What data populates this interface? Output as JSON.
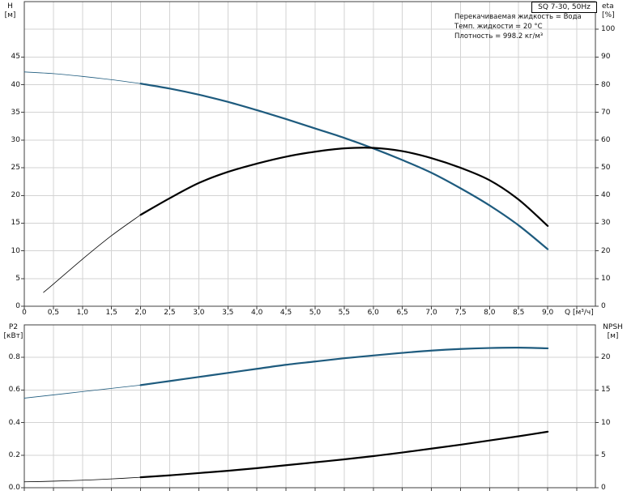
{
  "colors": {
    "primary": "#1e5b7e",
    "secondary": "#000000",
    "grid": "#d3d3d3",
    "axis": "#3f3f3f",
    "text": "#111111"
  },
  "chart_data": [
    {
      "id": "head-flow-chart",
      "type": "line",
      "title": "SQ 7-30, 50Hz",
      "annotations": [
        "Перекачиваемая жидкость = Вода",
        "Темп. жидкости = 20 °C",
        "Плотность = 998.2 кг/м³"
      ],
      "x_axis": {
        "label": "Q [м³/ч]",
        "lim": [
          0,
          9.82
        ],
        "grid_step": 0.5,
        "grid_max": 9.5,
        "tick_values": [
          0,
          0.5,
          1,
          1.5,
          2,
          2.5,
          3,
          3.5,
          4,
          4.5,
          5,
          5.5,
          6,
          6.5,
          7,
          7.5,
          8,
          8.5,
          9
        ],
        "tick_labels": [
          "0",
          "0,5",
          "1,0",
          "1,5",
          "2,0",
          "2,5",
          "3,0",
          "3,5",
          "4,0",
          "4,5",
          "5,0",
          "5,5",
          "6,0",
          "6,5",
          "7,0",
          "7,5",
          "8,0",
          "8,5",
          "9,0"
        ]
      },
      "left_axis": {
        "name": "H",
        "unit": "[м]",
        "lim": [
          0,
          55
        ],
        "tick_values": [
          0,
          5,
          10,
          15,
          20,
          25,
          30,
          35,
          40,
          45
        ],
        "tick_labels": [
          "0",
          "5",
          "10",
          "15",
          "20",
          "25",
          "30",
          "35",
          "40",
          "45"
        ],
        "grid_values": [
          5,
          10,
          15,
          20,
          25,
          30,
          35,
          40,
          45,
          50
        ]
      },
      "right_axis": {
        "name": "eta",
        "unit": "[%]",
        "lim": [
          0,
          110
        ],
        "tick_values": [
          0,
          10,
          20,
          30,
          40,
          50,
          60,
          70,
          80,
          90,
          100
        ],
        "tick_labels": [
          "0",
          "10",
          "20",
          "30",
          "40",
          "50",
          "60",
          "70",
          "80",
          "90",
          "100"
        ]
      },
      "legend": "off",
      "series": [
        {
          "name": "H",
          "key": "h",
          "axis": "left",
          "color_key": "primary",
          "thick_from_x": 2.0,
          "x": [
            0,
            0.5,
            1,
            1.5,
            2,
            2.5,
            3,
            3.5,
            4,
            4.5,
            5,
            5.5,
            6,
            6.5,
            7,
            7.5,
            8,
            8.5,
            9
          ],
          "y": [
            42.3,
            42.0,
            41.5,
            40.9,
            40.2,
            39.3,
            38.2,
            36.9,
            35.4,
            33.8,
            32.1,
            30.4,
            28.5,
            26.4,
            24.1,
            21.3,
            18.2,
            14.6,
            10.3
          ]
        },
        {
          "name": "eta",
          "key": "eta",
          "axis": "right",
          "color_key": "secondary",
          "thick_from_x": 2.0,
          "x": [
            0.33,
            0.5,
            1,
            1.5,
            2,
            2.5,
            3,
            3.5,
            4,
            4.5,
            5,
            5.5,
            6,
            6.5,
            7,
            7.5,
            8,
            8.5,
            9
          ],
          "y": [
            5,
            8,
            17,
            25.5,
            33,
            39,
            44.5,
            48.5,
            51.5,
            54,
            55.8,
            57,
            57.2,
            56,
            53.5,
            50,
            45.5,
            38.5,
            29
          ]
        }
      ]
    },
    {
      "id": "power-npsh-chart",
      "type": "line",
      "title": "",
      "annotations": [],
      "x_axis": {
        "label": "",
        "lim": [
          0,
          9.82
        ],
        "grid_step": 0.5,
        "grid_max": 9.5,
        "tick_values": [
          0,
          0.5,
          1,
          1.5,
          2,
          2.5,
          3,
          3.5,
          4,
          4.5,
          5,
          5.5,
          6,
          6.5,
          7,
          7.5,
          8,
          8.5,
          9
        ],
        "tick_labels": []
      },
      "left_axis": {
        "name": "P2",
        "unit": "[кВт]",
        "lim": [
          0,
          1.0
        ],
        "tick_values": [
          0,
          0.2,
          0.4,
          0.6,
          0.8
        ],
        "tick_labels": [
          "0.0",
          "0.2",
          "0.4",
          "0.6",
          "0.8"
        ],
        "grid_values": [
          0.2,
          0.4,
          0.6,
          0.8
        ]
      },
      "right_axis": {
        "name": "NPSH",
        "unit": "[м]",
        "lim": [
          0,
          25
        ],
        "tick_values": [
          0,
          5,
          10,
          15,
          20
        ],
        "tick_labels": [
          "0",
          "5",
          "10",
          "15",
          "20"
        ]
      },
      "legend": "off",
      "series": [
        {
          "name": "P2",
          "key": "p2",
          "axis": "left",
          "color_key": "primary",
          "thick_from_x": 2.0,
          "x": [
            0,
            0.5,
            1,
            1.5,
            2,
            2.5,
            3,
            3.5,
            4,
            4.5,
            5,
            5.5,
            6,
            6.5,
            7,
            7.5,
            8,
            8.5,
            9
          ],
          "y": [
            0.55,
            0.57,
            0.59,
            0.61,
            0.63,
            0.655,
            0.68,
            0.705,
            0.73,
            0.755,
            0.775,
            0.795,
            0.812,
            0.828,
            0.842,
            0.852,
            0.858,
            0.86,
            0.856
          ]
        },
        {
          "name": "NPSH",
          "key": "npsh",
          "axis": "right",
          "color_key": "secondary",
          "thick_from_x": 2.0,
          "x": [
            0,
            0.5,
            1,
            1.5,
            2,
            2.5,
            3,
            3.5,
            4,
            4.5,
            5,
            5.5,
            6,
            6.5,
            7,
            7.5,
            8,
            8.5,
            9
          ],
          "y": [
            0.9,
            1.0,
            1.15,
            1.35,
            1.6,
            1.9,
            2.25,
            2.6,
            3.0,
            3.45,
            3.9,
            4.35,
            4.85,
            5.4,
            6.0,
            6.6,
            7.25,
            7.9,
            8.6
          ]
        }
      ]
    }
  ]
}
